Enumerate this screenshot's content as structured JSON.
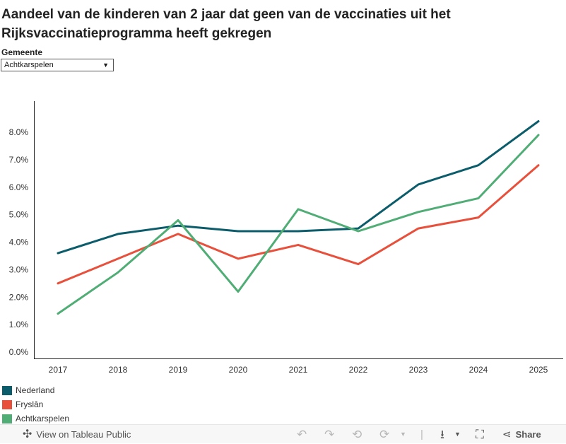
{
  "title": "Aandeel van de kinderen van 2 jaar dat geen van de vaccinaties uit het Rijksvaccinatieprogramma heeft gekregen",
  "filter": {
    "label": "Gemeente",
    "selected": "Achtkarspelen"
  },
  "chart_data": {
    "type": "line",
    "x": [
      "2017",
      "2018",
      "2019",
      "2020",
      "2021",
      "2022",
      "2023",
      "2024",
      "2025"
    ],
    "y_ticks": [
      "0.0%",
      "1.0%",
      "2.0%",
      "3.0%",
      "4.0%",
      "5.0%",
      "6.0%",
      "7.0%",
      "8.0%"
    ],
    "ylim": [
      0,
      8.8
    ],
    "series": [
      {
        "name": "Nederland",
        "color": "#0b5d6b",
        "values": [
          3.6,
          4.3,
          4.6,
          4.4,
          4.4,
          4.5,
          6.1,
          6.8,
          8.4
        ]
      },
      {
        "name": "Fryslân",
        "color": "#e8503c",
        "values": [
          2.5,
          3.4,
          4.3,
          3.4,
          3.9,
          3.2,
          4.5,
          4.9,
          6.8
        ]
      },
      {
        "name": "Achtkarspelen",
        "color": "#4fad75",
        "values": [
          1.4,
          2.9,
          4.8,
          2.2,
          5.2,
          4.4,
          5.1,
          5.6,
          7.9
        ]
      }
    ]
  },
  "toolbar": {
    "view_label": "View on Tableau Public",
    "share_label": "Share",
    "undo_icon": "↶",
    "redo_icon": "↷",
    "revert_icon": "⟲",
    "refresh_icon": "⟳",
    "download_icon": "⭳",
    "fullscreen_icon": "⛶",
    "share_icon": "⋖"
  }
}
